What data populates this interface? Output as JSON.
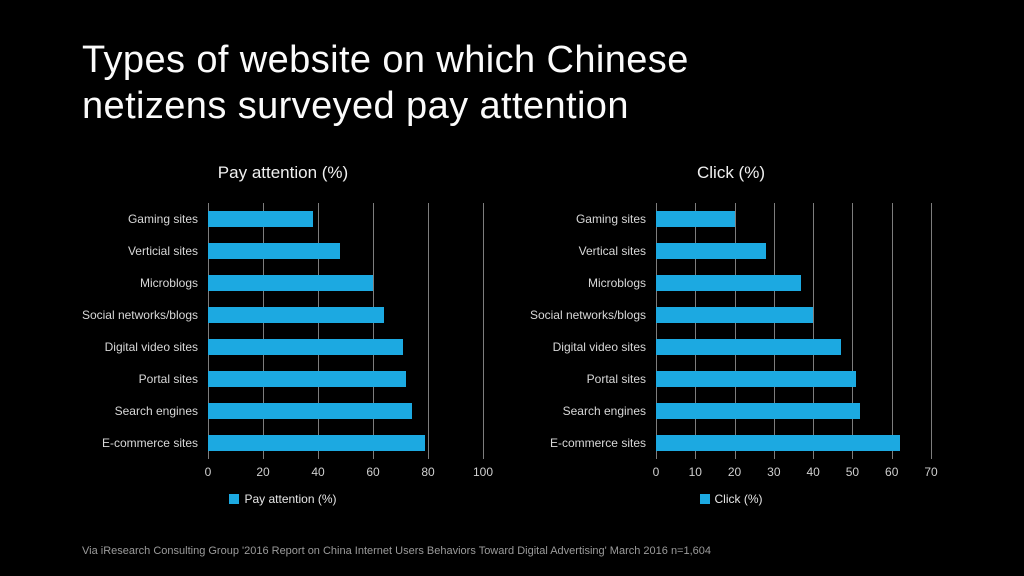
{
  "title": {
    "line1": "Types of website on which Chinese",
    "line2": "netizens surveyed pay attention"
  },
  "colors": {
    "background": "#000000",
    "bar": "#1CA9E1",
    "gridline": "#7d7d7d",
    "title_text": "#fbfbfb",
    "label_text": "#d8d8d8",
    "footer_text": "#9b9b9b"
  },
  "chart_data": [
    {
      "type": "bar",
      "orientation": "horizontal",
      "title": "Pay attention (%)",
      "legend": "Pay attention (%)",
      "legend_position": "bottom",
      "grid": true,
      "categories": [
        "Gaming sites",
        "Verticial sites",
        "Microblogs",
        "Social networks/blogs",
        "Digital video sites",
        "Portal sites",
        "Search engines",
        "E-commerce sites"
      ],
      "values": [
        38,
        48,
        60,
        64,
        71,
        72,
        74,
        79
      ],
      "xlabel": "",
      "ylabel": "",
      "xlim": [
        0,
        100
      ],
      "ticks": [
        0,
        20,
        40,
        60,
        80,
        100
      ]
    },
    {
      "type": "bar",
      "orientation": "horizontal",
      "title": "Click (%)",
      "legend": "Click (%)",
      "legend_position": "bottom",
      "grid": true,
      "categories": [
        "Gaming sites",
        "Vertical sites",
        "Microblogs",
        "Social networks/blogs",
        "Digital video sites",
        "Portal sites",
        "Search engines",
        "E-commerce sites"
      ],
      "values": [
        20,
        28,
        37,
        40,
        47,
        51,
        52,
        62
      ],
      "xlabel": "",
      "ylabel": "",
      "xlim": [
        0,
        70
      ],
      "ticks": [
        0,
        10,
        20,
        30,
        40,
        50,
        60,
        70
      ]
    }
  ],
  "footer": {
    "source": "Via iResearch Consulting Group '2016 Report on China Internet Users Behaviors Toward Digital Advertising' March 2016 n=1,604"
  }
}
